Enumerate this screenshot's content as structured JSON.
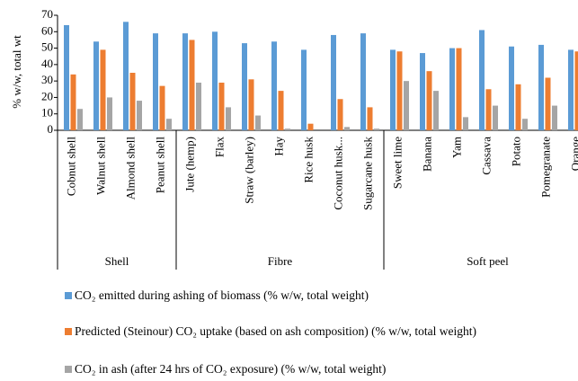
{
  "chart_data": {
    "type": "bar",
    "y_label": "% w/w, total wt",
    "groups": [
      {
        "name": "Shell",
        "categories": [
          "Cobnut shell",
          "Walnut shell",
          "Almond shell",
          "Peanut shell"
        ]
      },
      {
        "name": "Fibre",
        "categories": [
          "Jute (hemp)",
          "Flax",
          "Straw (barley)",
          "Hay",
          "Rice husk",
          "Coconut husk...",
          "Sugarcane husk"
        ]
      },
      {
        "name": "Soft peel",
        "categories": [
          "Sweet lime",
          "Banana",
          "Yam",
          "Cassava",
          "Potato",
          "Pomegranate",
          "Orange"
        ]
      }
    ],
    "series": [
      {
        "name": "CO₂ emitted during ashing of biomass (% w/w, total weight)",
        "color": "#5b9bd5",
        "values": [
          64,
          54,
          66,
          59,
          59,
          60,
          53,
          54,
          49,
          58,
          59,
          49,
          47,
          50,
          61,
          51,
          52,
          49
        ]
      },
      {
        "name": "Predicted (Steinour) CO₂ uptake (based on ash composition) (% w/w, total weight)",
        "color": "#ed7d31",
        "values": [
          34,
          49,
          35,
          27,
          55,
          29,
          31,
          24,
          4,
          19,
          14,
          48,
          36,
          50,
          25,
          28,
          32,
          48
        ]
      },
      {
        "name": "CO₂ in ash (after 24 hrs of CO₂ exposure) (% w/w, total weight)",
        "color": "#a5a5a5",
        "values": [
          13,
          20,
          18,
          7,
          29,
          14,
          9,
          1,
          0,
          2,
          1,
          30,
          24,
          8,
          15,
          7,
          15,
          27
        ]
      }
    ],
    "ylim": [
      0,
      70
    ],
    "yticks": [
      0,
      10,
      20,
      30,
      40,
      50,
      60,
      70
    ],
    "grid": false
  }
}
